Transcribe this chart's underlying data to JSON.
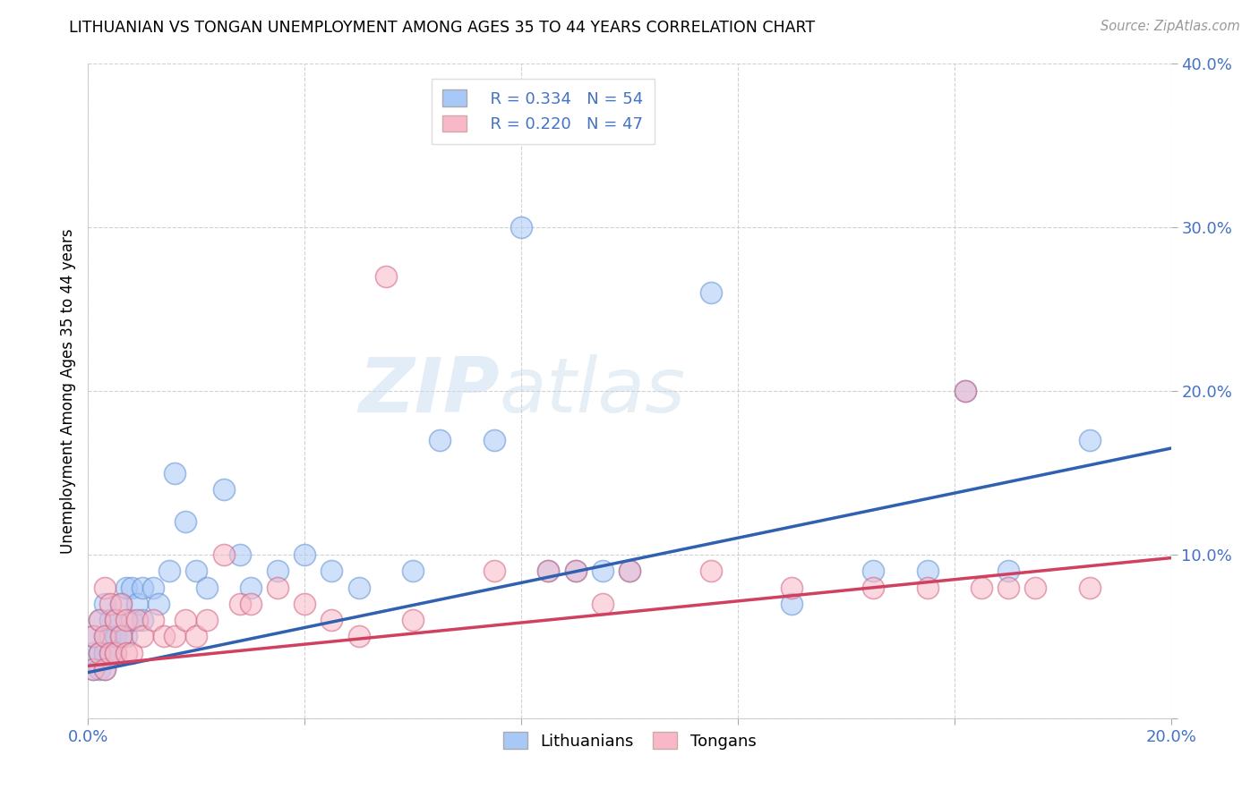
{
  "title": "LITHUANIAN VS TONGAN UNEMPLOYMENT AMONG AGES 35 TO 44 YEARS CORRELATION CHART",
  "source": "Source: ZipAtlas.com",
  "ylabel": "Unemployment Among Ages 35 to 44 years",
  "xlim": [
    0.0,
    0.2
  ],
  "ylim": [
    0.0,
    0.4
  ],
  "xticks": [
    0.0,
    0.04,
    0.08,
    0.12,
    0.16,
    0.2
  ],
  "yticks": [
    0.0,
    0.1,
    0.2,
    0.3,
    0.4
  ],
  "blue_color": "#a8c8f8",
  "pink_color": "#f8b8c8",
  "blue_edge_color": "#6090d0",
  "pink_edge_color": "#d06080",
  "blue_line_color": "#3060b0",
  "pink_line_color": "#d04060",
  "legend_R_blue": "R = 0.334",
  "legend_N_blue": "N = 54",
  "legend_R_pink": "R = 0.220",
  "legend_N_pink": "N = 47",
  "watermark_zip": "ZIP",
  "watermark_atlas": "atlas",
  "blue_scatter_x": [
    0.001,
    0.001,
    0.001,
    0.002,
    0.002,
    0.002,
    0.003,
    0.003,
    0.003,
    0.003,
    0.004,
    0.004,
    0.004,
    0.005,
    0.005,
    0.005,
    0.006,
    0.006,
    0.007,
    0.007,
    0.008,
    0.008,
    0.009,
    0.01,
    0.01,
    0.012,
    0.013,
    0.015,
    0.016,
    0.018,
    0.02,
    0.022,
    0.025,
    0.028,
    0.03,
    0.035,
    0.04,
    0.045,
    0.05,
    0.06,
    0.065,
    0.075,
    0.08,
    0.085,
    0.09,
    0.095,
    0.1,
    0.115,
    0.13,
    0.145,
    0.155,
    0.162,
    0.17,
    0.185
  ],
  "blue_scatter_y": [
    0.03,
    0.04,
    0.05,
    0.03,
    0.04,
    0.06,
    0.03,
    0.04,
    0.05,
    0.07,
    0.04,
    0.05,
    0.06,
    0.04,
    0.05,
    0.06,
    0.05,
    0.07,
    0.05,
    0.08,
    0.06,
    0.08,
    0.07,
    0.06,
    0.08,
    0.08,
    0.07,
    0.09,
    0.15,
    0.12,
    0.09,
    0.08,
    0.14,
    0.1,
    0.08,
    0.09,
    0.1,
    0.09,
    0.08,
    0.09,
    0.17,
    0.17,
    0.3,
    0.09,
    0.09,
    0.09,
    0.09,
    0.26,
    0.07,
    0.09,
    0.09,
    0.2,
    0.09,
    0.17
  ],
  "pink_scatter_x": [
    0.001,
    0.001,
    0.002,
    0.002,
    0.003,
    0.003,
    0.003,
    0.004,
    0.004,
    0.005,
    0.005,
    0.006,
    0.006,
    0.007,
    0.007,
    0.008,
    0.009,
    0.01,
    0.012,
    0.014,
    0.016,
    0.018,
    0.02,
    0.022,
    0.025,
    0.028,
    0.03,
    0.035,
    0.04,
    0.045,
    0.05,
    0.055,
    0.06,
    0.075,
    0.085,
    0.09,
    0.095,
    0.1,
    0.115,
    0.13,
    0.145,
    0.155,
    0.162,
    0.165,
    0.17,
    0.175,
    0.185
  ],
  "pink_scatter_y": [
    0.03,
    0.05,
    0.04,
    0.06,
    0.03,
    0.05,
    0.08,
    0.04,
    0.07,
    0.04,
    0.06,
    0.05,
    0.07,
    0.04,
    0.06,
    0.04,
    0.06,
    0.05,
    0.06,
    0.05,
    0.05,
    0.06,
    0.05,
    0.06,
    0.1,
    0.07,
    0.07,
    0.08,
    0.07,
    0.06,
    0.05,
    0.27,
    0.06,
    0.09,
    0.09,
    0.09,
    0.07,
    0.09,
    0.09,
    0.08,
    0.08,
    0.08,
    0.2,
    0.08,
    0.08,
    0.08,
    0.08
  ],
  "blue_trend_x": [
    0.0,
    0.2
  ],
  "blue_trend_y": [
    0.028,
    0.165
  ],
  "pink_trend_x": [
    0.0,
    0.2
  ],
  "pink_trend_y": [
    0.032,
    0.098
  ]
}
